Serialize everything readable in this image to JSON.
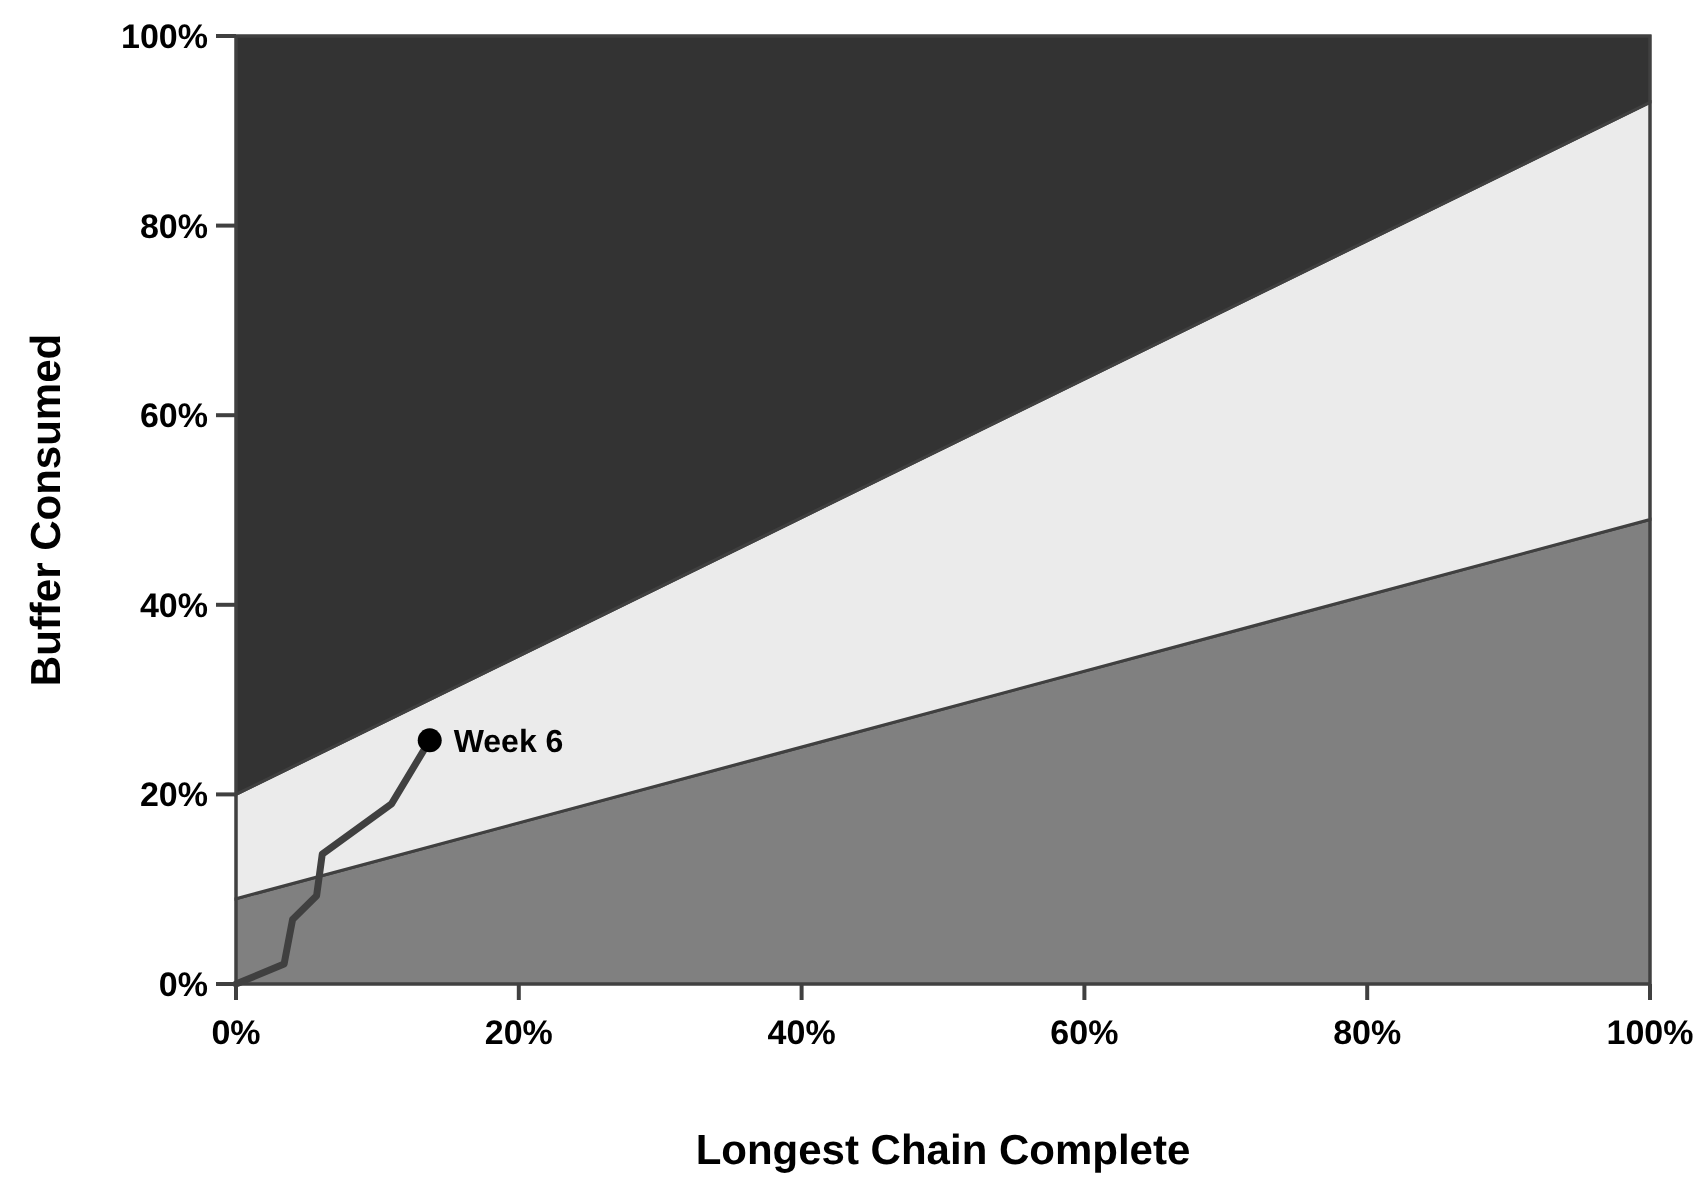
{
  "chart_data": {
    "type": "area",
    "stacked": true,
    "xlabel": "Longest Chain Complete",
    "ylabel": "Buffer Consumed",
    "x": [
      0,
      100
    ],
    "xlim": [
      0,
      100
    ],
    "ylim": [
      0,
      100
    ],
    "xticks": [
      {
        "value": 0,
        "label": "0%"
      },
      {
        "value": 20,
        "label": "20%"
      },
      {
        "value": 40,
        "label": "40%"
      },
      {
        "value": 60,
        "label": "60%"
      },
      {
        "value": 80,
        "label": "80%"
      },
      {
        "value": 100,
        "label": "100%"
      }
    ],
    "yticks": [
      {
        "value": 0,
        "label": "0%"
      },
      {
        "value": 20,
        "label": "20%"
      },
      {
        "value": 40,
        "label": "40%"
      },
      {
        "value": 60,
        "label": "60%"
      },
      {
        "value": 80,
        "label": "80%"
      },
      {
        "value": 100,
        "label": "100%"
      }
    ],
    "grid": false,
    "series": [
      {
        "color": "#808080",
        "values": [
          9,
          49
        ]
      },
      {
        "color": "#ebebeb",
        "values": [
          11,
          44
        ]
      },
      {
        "color": "#333333",
        "values": [
          80,
          7
        ]
      },
      {
        "type": "line",
        "color": "#404040",
        "x": [
          0,
          3.4,
          4.0,
          5.7,
          6.1,
          11.0,
          13.7
        ],
        "values": [
          0,
          2.1,
          6.8,
          9.3,
          13.7,
          19.0,
          25.7
        ]
      },
      {
        "type": "scatter",
        "marker": "circle",
        "color": "#000000",
        "x": [
          13.7
        ],
        "values": [
          25.7
        ]
      }
    ],
    "annotations": [
      {
        "text": "Week 6",
        "x": 13.7,
        "y": 25.7
      }
    ]
  }
}
